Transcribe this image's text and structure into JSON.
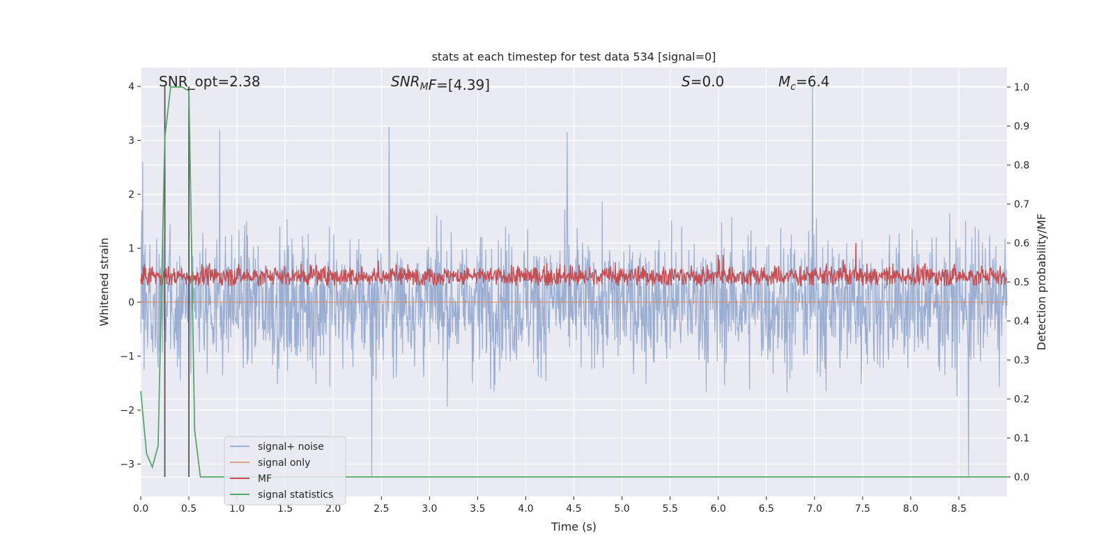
{
  "chart_data": {
    "type": "line",
    "title": "stats at each timestep for test data 534 [signal=0]",
    "xlabel": "Time (s)",
    "ylabel": "Whitened strain",
    "y2label": "Detection probability/MF",
    "xlim": [
      0,
      9.0
    ],
    "ylim": [
      -3.6,
      4.35
    ],
    "y2lim": [
      -0.05,
      1.05
    ],
    "x_ticks": [
      0.0,
      0.5,
      1.0,
      1.5,
      2.0,
      2.5,
      3.0,
      3.5,
      4.0,
      4.5,
      5.0,
      5.5,
      6.0,
      6.5,
      7.0,
      7.5,
      8.0,
      8.5
    ],
    "x_tick_labels": [
      "0.0",
      "0.5",
      "1.0",
      "1.5",
      "2.0",
      "2.5",
      "3.0",
      "3.5",
      "4.0",
      "4.5",
      "5.0",
      "5.5",
      "6.0",
      "6.5",
      "7.0",
      "7.5",
      "8.0",
      "8.5"
    ],
    "y_ticks": [
      -3,
      -2,
      -1,
      0,
      1,
      2,
      3,
      4
    ],
    "y_tick_labels": [
      "−3",
      "−2",
      "−1",
      "0",
      "1",
      "2",
      "3",
      "4"
    ],
    "y2_ticks": [
      0.0,
      0.1,
      0.2,
      0.3,
      0.4,
      0.5,
      0.6,
      0.7,
      0.8,
      0.9,
      1.0
    ],
    "y2_tick_labels": [
      "0.0",
      "0.1",
      "0.2",
      "0.3",
      "0.4",
      "0.5",
      "0.6",
      "0.7",
      "0.8",
      "0.9",
      "1.0"
    ],
    "grid": true,
    "legend_position": "lower-left",
    "annotations": [
      {
        "label": "SNR_opt=2.38",
        "style": "plain"
      },
      {
        "label": "SNR_MF=[4.39]",
        "style": "math",
        "base": "SNR",
        "sub": "M",
        "tail": "F=[4.39]"
      },
      {
        "label": "S=0.0",
        "style": "math",
        "base": "S",
        "sub": "",
        "tail": "=0.0"
      },
      {
        "label": "M_c=6.4",
        "style": "math",
        "base": "M",
        "sub": "c",
        "tail": "=6.4"
      }
    ],
    "series": [
      {
        "name": "signal+ noise",
        "color": "#4c72b0",
        "axis": "left",
        "x_range": [
          0,
          9.0
        ],
        "sampling_rate_hz": 200,
        "approx_lower_envelope": -1.9,
        "approx_upper_envelope": 1.9,
        "peak_values": [
          {
            "x": 0.02,
            "y": 2.6
          },
          {
            "x": 0.82,
            "y": 3.2
          },
          {
            "x": 2.4,
            "y": -3.25
          },
          {
            "x": 2.58,
            "y": 3.25
          },
          {
            "x": 4.43,
            "y": 3.15
          },
          {
            "x": 6.98,
            "y": 4.0
          },
          {
            "x": 8.6,
            "y": -3.25
          }
        ]
      },
      {
        "name": "signal only",
        "color": "#dd8452",
        "axis": "left",
        "x_range": [
          0,
          9.0
        ],
        "constant_value": 0.0
      },
      {
        "name": "MF",
        "color": "#c44e52",
        "axis": "right",
        "x_range": [
          0,
          9.0
        ],
        "approx_lower_envelope": 0.5,
        "approx_upper_envelope": 0.55,
        "peak_values": [
          {
            "x": 7.43,
            "y": 0.6
          }
        ]
      },
      {
        "name": "signal statistics",
        "color": "#55a868",
        "axis": "right",
        "x": [
          0.0,
          0.06,
          0.12,
          0.18,
          0.25,
          0.31,
          0.37,
          0.43,
          0.5,
          0.56,
          0.62,
          0.7,
          1.0,
          2.0,
          3.0,
          4.0,
          5.0,
          6.0,
          7.0,
          8.0,
          9.0
        ],
        "y": [
          0.22,
          0.06,
          0.025,
          0.08,
          0.87,
          1.0,
          1.0,
          1.0,
          0.99,
          0.12,
          0.0,
          0.0,
          0.0,
          0.0,
          0.0,
          0.0,
          0.0,
          0.0,
          0.0,
          0.0,
          0.0
        ]
      }
    ],
    "vertical_markers": [
      {
        "x": 0.25,
        "color": "#555555"
      },
      {
        "x": 0.5,
        "color": "#555555"
      }
    ]
  }
}
